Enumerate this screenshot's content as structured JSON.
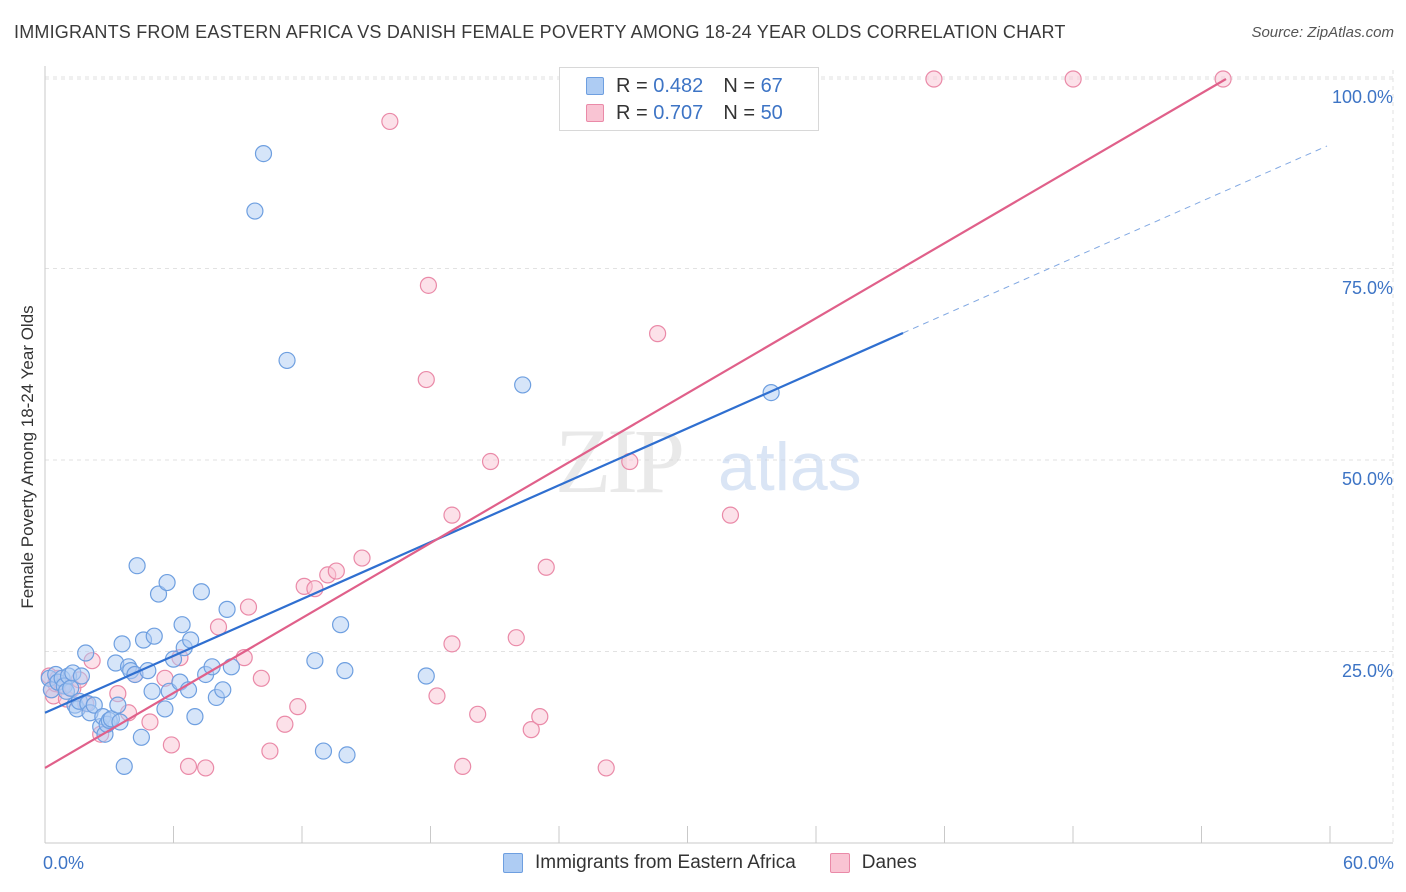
{
  "title": "IMMIGRANTS FROM EASTERN AFRICA VS DANISH FEMALE POVERTY AMONG 18-24 YEAR OLDS CORRELATION CHART",
  "source": "Source: ZipAtlas.com",
  "watermark": {
    "zip": "ZIP",
    "atlas": "atlas"
  },
  "legend": {
    "series1": {
      "r_label": "R =",
      "r_value": "0.482",
      "n_label": "N =",
      "n_value": "67"
    },
    "series2": {
      "r_label": "R =",
      "r_value": "0.707",
      "n_label": "N =",
      "n_value": "50"
    }
  },
  "colors": {
    "blue_fill": "#aeccf3",
    "blue_stroke": "#6e9fe0",
    "blue_line": "#2f6fd0",
    "pink_fill": "#f9c4d3",
    "pink_stroke": "#ea8aa8",
    "pink_line": "#e0608a",
    "axis_text": "#3d74c5"
  },
  "chart_data": {
    "type": "scatter",
    "title": "IMMIGRANTS FROM EASTERN AFRICA VS DANISH FEMALE POVERTY AMONG 18-24 YEAR OLDS CORRELATION CHART",
    "xlabel": "",
    "ylabel": "Female Poverty Among 18-24 Year Olds",
    "xlim": [
      0,
      60
    ],
    "ylim": [
      0,
      102
    ],
    "x_tick_labels": [
      "0.0%",
      "60.0%"
    ],
    "y_tick_labels": [
      "25.0%",
      "50.0%",
      "75.0%",
      "100.0%"
    ],
    "y_tick_values": [
      25,
      50,
      75,
      100
    ],
    "grid": true,
    "legend_position": "top-center",
    "series": [
      {
        "name": "Immigrants from Eastern Africa",
        "color": "#aeccf3",
        "points": [
          [
            0.2,
            21.5
          ],
          [
            0.3,
            20.0
          ],
          [
            0.5,
            22.0
          ],
          [
            0.6,
            21.0
          ],
          [
            0.8,
            21.5
          ],
          [
            0.9,
            20.5
          ],
          [
            1.0,
            19.8
          ],
          [
            1.1,
            21.8
          ],
          [
            1.2,
            20.2
          ],
          [
            1.3,
            22.2
          ],
          [
            1.4,
            18.0
          ],
          [
            1.5,
            17.5
          ],
          [
            1.6,
            18.5
          ],
          [
            1.7,
            21.8
          ],
          [
            1.9,
            24.8
          ],
          [
            2.0,
            18.2
          ],
          [
            2.1,
            17.0
          ],
          [
            2.3,
            18.0
          ],
          [
            2.6,
            15.2
          ],
          [
            2.7,
            16.5
          ],
          [
            2.8,
            14.2
          ],
          [
            2.9,
            15.5
          ],
          [
            3.0,
            16.0
          ],
          [
            3.1,
            16.2
          ],
          [
            3.3,
            23.5
          ],
          [
            3.4,
            18.0
          ],
          [
            3.5,
            15.8
          ],
          [
            3.6,
            26.0
          ],
          [
            3.7,
            10.0
          ],
          [
            3.9,
            23.0
          ],
          [
            4.0,
            22.5
          ],
          [
            4.2,
            22.0
          ],
          [
            4.3,
            36.2
          ],
          [
            4.5,
            13.8
          ],
          [
            4.6,
            26.5
          ],
          [
            4.8,
            22.5
          ],
          [
            5.0,
            19.8
          ],
          [
            5.1,
            27.0
          ],
          [
            5.3,
            32.5
          ],
          [
            5.6,
            17.5
          ],
          [
            5.7,
            34.0
          ],
          [
            5.8,
            19.8
          ],
          [
            6.0,
            24.0
          ],
          [
            6.3,
            21.0
          ],
          [
            6.4,
            28.5
          ],
          [
            6.5,
            25.5
          ],
          [
            6.7,
            20.0
          ],
          [
            6.8,
            26.5
          ],
          [
            7.0,
            16.5
          ],
          [
            7.3,
            32.8
          ],
          [
            7.5,
            22.0
          ],
          [
            7.8,
            23.0
          ],
          [
            8.0,
            19.0
          ],
          [
            8.3,
            20.0
          ],
          [
            8.5,
            30.5
          ],
          [
            8.7,
            23.0
          ],
          [
            9.8,
            82.5
          ],
          [
            10.2,
            90.0
          ],
          [
            11.3,
            63.0
          ],
          [
            12.6,
            23.8
          ],
          [
            13.0,
            12.0
          ],
          [
            13.8,
            28.5
          ],
          [
            14.1,
            11.5
          ],
          [
            14.0,
            22.5
          ],
          [
            17.8,
            21.8
          ],
          [
            22.3,
            59.8
          ],
          [
            33.9,
            58.8
          ]
        ]
      },
      {
        "name": "Danes",
        "color": "#f9c4d3",
        "points": [
          [
            0.2,
            21.8
          ],
          [
            0.3,
            20.0
          ],
          [
            0.4,
            19.2
          ],
          [
            0.5,
            20.8
          ],
          [
            0.6,
            21.5
          ],
          [
            0.8,
            20.5
          ],
          [
            1.0,
            18.8
          ],
          [
            1.3,
            20.2
          ],
          [
            1.6,
            21.3
          ],
          [
            1.9,
            18.2
          ],
          [
            2.2,
            23.8
          ],
          [
            2.6,
            14.2
          ],
          [
            3.4,
            19.5
          ],
          [
            3.9,
            17.0
          ],
          [
            4.2,
            22.0
          ],
          [
            4.9,
            15.8
          ],
          [
            5.6,
            21.5
          ],
          [
            5.9,
            12.8
          ],
          [
            6.3,
            24.2
          ],
          [
            6.7,
            10.0
          ],
          [
            7.5,
            9.8
          ],
          [
            8.1,
            28.2
          ],
          [
            9.3,
            24.2
          ],
          [
            9.5,
            30.8
          ],
          [
            10.1,
            21.5
          ],
          [
            10.5,
            12.0
          ],
          [
            11.2,
            15.5
          ],
          [
            11.8,
            17.8
          ],
          [
            12.1,
            33.5
          ],
          [
            12.6,
            33.2
          ],
          [
            13.2,
            35.0
          ],
          [
            13.6,
            35.5
          ],
          [
            14.8,
            37.2
          ],
          [
            16.1,
            94.2
          ],
          [
            17.8,
            60.5
          ],
          [
            17.9,
            72.8
          ],
          [
            18.3,
            19.2
          ],
          [
            19.0,
            26.0
          ],
          [
            19.0,
            42.8
          ],
          [
            19.5,
            10.0
          ],
          [
            20.2,
            16.8
          ],
          [
            20.8,
            49.8
          ],
          [
            22.0,
            26.8
          ],
          [
            22.7,
            14.8
          ],
          [
            23.1,
            16.5
          ],
          [
            23.4,
            36.0
          ],
          [
            26.2,
            9.8
          ],
          [
            27.3,
            49.8
          ],
          [
            28.6,
            66.5
          ],
          [
            32.0,
            42.8
          ]
        ],
        "points_top_clipped": [
          [
            41.5,
            100.0
          ],
          [
            48.0,
            100.0
          ],
          [
            55.0,
            100.0
          ]
        ]
      }
    ],
    "trendlines": [
      {
        "series": "Immigrants from Eastern Africa",
        "x0": 0,
        "y0": 17.0,
        "x1": 40.0,
        "y1": 66.5,
        "dashed_to_x": 60.0,
        "dashed_to_y": 91.5
      },
      {
        "series": "Danes",
        "x0": 0,
        "y0": 9.8,
        "x1": 55.2,
        "y1": 100.0
      }
    ]
  },
  "bottom_legend": {
    "series1": "Immigrants from Eastern Africa",
    "series2": "Danes"
  }
}
